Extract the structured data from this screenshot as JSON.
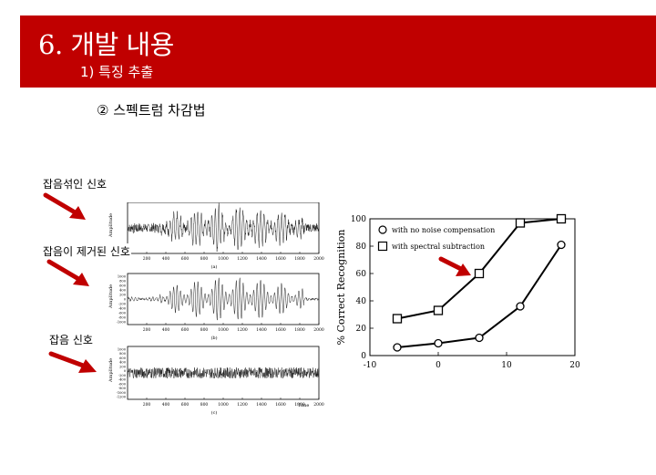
{
  "header": {
    "title": "6. 개발 내용",
    "subtitle": "1) 특징 추출"
  },
  "section": {
    "heading": "② 스펙트럼 차감법"
  },
  "signals": {
    "labels": [
      "잡음섞인 신호",
      "잡음이 제거된 신호",
      "잡음 신호"
    ],
    "captions": [
      "(a)",
      "(b)",
      "(c)"
    ],
    "ylabel": "Amplitude",
    "xlabel": "Time",
    "x_ticks": [
      200,
      400,
      600,
      800,
      1000,
      1200,
      1400,
      1600,
      1800,
      2000
    ],
    "y_ticks_a": [],
    "y_ticks_b": [
      "1000",
      "800",
      "600",
      "400",
      "200",
      "0",
      "-200",
      "-400",
      "-600",
      "-800",
      "-1000"
    ],
    "y_ticks_c": [
      "1000",
      "800",
      "600",
      "400",
      "200",
      "0",
      "-200",
      "-400",
      "-600",
      "-800",
      "-1000",
      "-1200"
    ],
    "accent": "#c00000"
  },
  "chart_data": {
    "type": "line",
    "ylabel": "% Correct Recognition",
    "xlabel": "",
    "xlim": [
      -10,
      20
    ],
    "ylim": [
      0,
      100
    ],
    "x_ticks": [
      -10,
      0,
      10,
      20
    ],
    "y_ticks": [
      0,
      20,
      40,
      60,
      80,
      100
    ],
    "legend_position": "top-left",
    "series": [
      {
        "name": "with no noise compensation",
        "marker": "circle",
        "x": [
          -6,
          0,
          6,
          12,
          18
        ],
        "values": [
          6,
          9,
          13,
          36,
          81
        ]
      },
      {
        "name": "with spectral subtraction",
        "marker": "square",
        "x": [
          -6,
          0,
          6,
          12,
          18
        ],
        "values": [
          27,
          33,
          60,
          97,
          100
        ]
      }
    ]
  }
}
